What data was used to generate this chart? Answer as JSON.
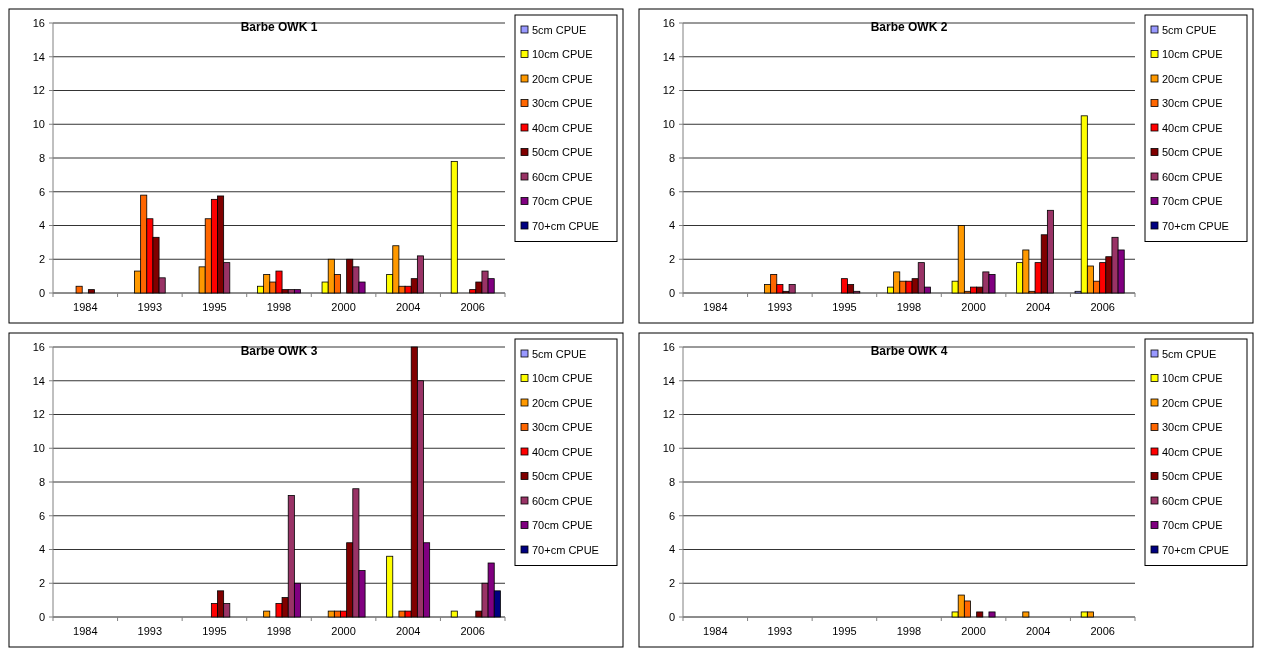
{
  "chart_data": [
    {
      "type": "bar",
      "title": "Barbe OWK 1",
      "categories": [
        "1984",
        "1993",
        "1995",
        "1998",
        "2000",
        "2004",
        "2006"
      ],
      "ylim": [
        0,
        16
      ],
      "yticks": [
        0,
        2,
        4,
        6,
        8,
        10,
        12,
        14,
        16
      ],
      "grid": "y",
      "legend": "right",
      "series": [
        {
          "name": "5cm CPUE",
          "color": "#9999ff",
          "values": [
            null,
            null,
            null,
            null,
            null,
            null,
            null
          ]
        },
        {
          "name": "10cm CPUE",
          "color": "#ffff00",
          "values": [
            null,
            null,
            null,
            0.4,
            0.65,
            1.1,
            7.8
          ]
        },
        {
          "name": "20cm CPUE",
          "color": "#ff9900",
          "values": [
            null,
            1.3,
            1.55,
            1.1,
            2.0,
            2.8,
            null
          ]
        },
        {
          "name": "30cm CPUE",
          "color": "#ff6600",
          "values": [
            0.4,
            5.8,
            4.4,
            0.65,
            1.1,
            0.4,
            null
          ]
        },
        {
          "name": "40cm CPUE",
          "color": "#ff0000",
          "values": [
            null,
            4.4,
            5.55,
            1.3,
            null,
            0.4,
            0.2
          ]
        },
        {
          "name": "50cm CPUE",
          "color": "#800000",
          "values": [
            0.2,
            3.3,
            5.75,
            0.2,
            2.0,
            0.85,
            0.65
          ]
        },
        {
          "name": "60cm CPUE",
          "color": "#993366",
          "values": [
            null,
            0.9,
            1.8,
            0.2,
            1.55,
            2.2,
            1.3
          ]
        },
        {
          "name": "70cm CPUE",
          "color": "#800080",
          "values": [
            null,
            null,
            null,
            0.2,
            0.65,
            null,
            0.85
          ]
        },
        {
          "name": "70+cm CPUE",
          "color": "#000080",
          "values": [
            null,
            null,
            null,
            null,
            null,
            null,
            null
          ]
        }
      ]
    },
    {
      "type": "bar",
      "title": "Barbe OWK 2",
      "categories": [
        "1984",
        "1993",
        "1995",
        "1998",
        "2000",
        "2004",
        "2006"
      ],
      "ylim": [
        0,
        16
      ],
      "yticks": [
        0,
        2,
        4,
        6,
        8,
        10,
        12,
        14,
        16
      ],
      "grid": "y",
      "legend": "right",
      "series": [
        {
          "name": "5cm CPUE",
          "color": "#9999ff",
          "values": [
            null,
            null,
            null,
            null,
            null,
            null,
            0.1
          ]
        },
        {
          "name": "10cm CPUE",
          "color": "#ffff00",
          "values": [
            null,
            null,
            null,
            0.35,
            0.7,
            1.8,
            10.5
          ]
        },
        {
          "name": "20cm CPUE",
          "color": "#ff9900",
          "values": [
            null,
            0.5,
            null,
            1.25,
            4.0,
            2.55,
            1.6
          ]
        },
        {
          "name": "30cm CPUE",
          "color": "#ff6600",
          "values": [
            null,
            1.1,
            null,
            0.7,
            0.1,
            0.1,
            0.7
          ]
        },
        {
          "name": "40cm CPUE",
          "color": "#ff0000",
          "values": [
            null,
            0.5,
            0.85,
            0.7,
            0.35,
            1.8,
            1.8
          ]
        },
        {
          "name": "50cm CPUE",
          "color": "#800000",
          "values": [
            null,
            0.1,
            0.5,
            0.85,
            0.35,
            3.45,
            2.15
          ]
        },
        {
          "name": "60cm CPUE",
          "color": "#993366",
          "values": [
            null,
            0.5,
            0.1,
            1.8,
            1.25,
            4.9,
            3.3
          ]
        },
        {
          "name": "70cm CPUE",
          "color": "#800080",
          "values": [
            null,
            null,
            null,
            0.35,
            1.1,
            null,
            2.55
          ]
        },
        {
          "name": "70+cm CPUE",
          "color": "#000080",
          "values": [
            null,
            null,
            null,
            null,
            null,
            null,
            null
          ]
        }
      ]
    },
    {
      "type": "bar",
      "title": "Barbe OWK 3",
      "categories": [
        "1984",
        "1993",
        "1995",
        "1998",
        "2000",
        "2004",
        "2006"
      ],
      "ylim": [
        0,
        16
      ],
      "yticks": [
        0,
        2,
        4,
        6,
        8,
        10,
        12,
        14,
        16
      ],
      "grid": "y",
      "legend": "right",
      "series": [
        {
          "name": "5cm CPUE",
          "color": "#9999ff",
          "values": [
            null,
            null,
            null,
            null,
            null,
            null,
            null
          ]
        },
        {
          "name": "10cm CPUE",
          "color": "#ffff00",
          "values": [
            null,
            null,
            null,
            null,
            null,
            3.6,
            0.35
          ]
        },
        {
          "name": "20cm CPUE",
          "color": "#ff9900",
          "values": [
            null,
            null,
            null,
            0.35,
            0.35,
            null,
            null
          ]
        },
        {
          "name": "30cm CPUE",
          "color": "#ff6600",
          "values": [
            null,
            null,
            null,
            null,
            0.35,
            0.35,
            null
          ]
        },
        {
          "name": "40cm CPUE",
          "color": "#ff0000",
          "values": [
            null,
            null,
            0.8,
            0.8,
            0.35,
            0.35,
            null
          ]
        },
        {
          "name": "50cm CPUE",
          "color": "#800000",
          "values": [
            null,
            null,
            1.55,
            1.15,
            4.4,
            16,
            0.35
          ]
        },
        {
          "name": "60cm CPUE",
          "color": "#993366",
          "values": [
            null,
            null,
            0.8,
            7.2,
            7.6,
            14,
            2.0
          ]
        },
        {
          "name": "70cm CPUE",
          "color": "#800080",
          "values": [
            null,
            null,
            null,
            2.0,
            2.75,
            4.4,
            3.2
          ]
        },
        {
          "name": "70+cm CPUE",
          "color": "#000080",
          "values": [
            null,
            null,
            null,
            null,
            null,
            null,
            1.55
          ]
        }
      ]
    },
    {
      "type": "bar",
      "title": "Barbe OWK 4",
      "categories": [
        "1984",
        "1993",
        "1995",
        "1998",
        "2000",
        "2004",
        "2006"
      ],
      "ylim": [
        0,
        16
      ],
      "yticks": [
        0,
        2,
        4,
        6,
        8,
        10,
        12,
        14,
        16
      ],
      "grid": "y",
      "legend": "right",
      "series": [
        {
          "name": "5cm CPUE",
          "color": "#9999ff",
          "values": [
            null,
            null,
            null,
            null,
            null,
            null,
            null
          ]
        },
        {
          "name": "10cm CPUE",
          "color": "#ffff00",
          "values": [
            null,
            null,
            null,
            null,
            0.3,
            null,
            0.3
          ]
        },
        {
          "name": "20cm CPUE",
          "color": "#ff9900",
          "values": [
            null,
            null,
            null,
            null,
            1.3,
            0.3,
            0.3
          ]
        },
        {
          "name": "30cm CPUE",
          "color": "#ff6600",
          "values": [
            null,
            null,
            null,
            null,
            0.95,
            null,
            null
          ]
        },
        {
          "name": "40cm CPUE",
          "color": "#ff0000",
          "values": [
            null,
            null,
            null,
            null,
            null,
            null,
            null
          ]
        },
        {
          "name": "50cm CPUE",
          "color": "#800000",
          "values": [
            null,
            null,
            null,
            null,
            0.3,
            null,
            null
          ]
        },
        {
          "name": "60cm CPUE",
          "color": "#993366",
          "values": [
            null,
            null,
            null,
            null,
            null,
            null,
            null
          ]
        },
        {
          "name": "70cm CPUE",
          "color": "#800080",
          "values": [
            null,
            null,
            null,
            null,
            0.3,
            null,
            null
          ]
        },
        {
          "name": "70+cm CPUE",
          "color": "#000080",
          "values": [
            null,
            null,
            null,
            null,
            null,
            null,
            null
          ]
        }
      ]
    }
  ]
}
